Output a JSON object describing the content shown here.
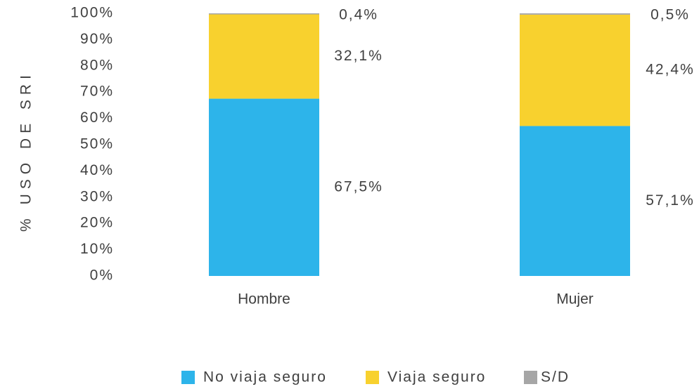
{
  "chart_data": {
    "type": "bar",
    "stacked": true,
    "y_label": "% USO DE SRI",
    "categories": [
      "Hombre",
      "Mujer"
    ],
    "series": [
      {
        "name": "No viaja seguro",
        "color": "#2db4ea",
        "values": [
          67.5,
          57.1
        ],
        "value_labels": [
          "67,5%",
          "57,1%"
        ]
      },
      {
        "name": "Viaja seguro",
        "color": "#f8d12e",
        "values": [
          32.1,
          42.4
        ],
        "value_labels": [
          "32,1%",
          "42,4%"
        ]
      },
      {
        "name": "S/D",
        "color": "#a6a6a6",
        "values": [
          0.4,
          0.5
        ],
        "value_labels": [
          "0,4%",
          "0,5%"
        ]
      }
    ],
    "ylim": [
      0,
      100
    ],
    "yticks": [
      {
        "value": 0,
        "label": "0%"
      },
      {
        "value": 10,
        "label": "10%"
      },
      {
        "value": 20,
        "label": "20%"
      },
      {
        "value": 30,
        "label": "30%"
      },
      {
        "value": 40,
        "label": "40%"
      },
      {
        "value": 50,
        "label": "50%"
      },
      {
        "value": 60,
        "label": "60%"
      },
      {
        "value": 70,
        "label": "70%"
      },
      {
        "value": 80,
        "label": "80%"
      },
      {
        "value": 90,
        "label": "90%"
      },
      {
        "value": 100,
        "label": "100%"
      }
    ],
    "grid": false,
    "legend": "bottom"
  }
}
